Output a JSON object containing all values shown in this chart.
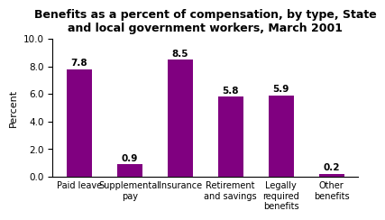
{
  "title": "Benefits as a percent of compensation, by type, State\nand local government workers, March 2001",
  "categories": [
    "Paid leave",
    "Supplemental\npay",
    "Insurance",
    "Retirement\nand savings",
    "Legally\nrequired\nbenefits",
    "Other\nbenefits"
  ],
  "values": [
    7.8,
    0.9,
    8.5,
    5.8,
    5.9,
    0.2
  ],
  "bar_color": "#800080",
  "ylabel": "Percent",
  "ylim": [
    0,
    10.0
  ],
  "yticks": [
    0.0,
    2.0,
    4.0,
    6.0,
    8.0,
    10.0
  ],
  "title_fontsize": 9,
  "label_fontsize": 8,
  "bar_width": 0.5,
  "background_color": "#ffffff"
}
